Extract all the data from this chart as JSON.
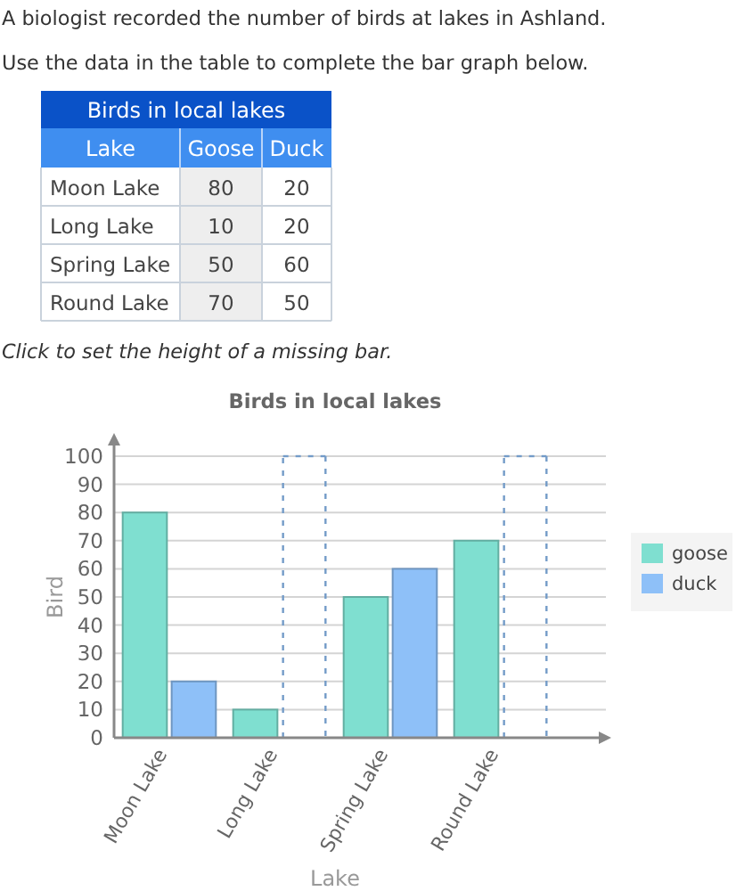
{
  "chart_data": [
    {
      "type": "other",
      "title": "Birds in local lakes",
      "xlabel": "Lake",
      "categories": [
        "Moon Lake",
        "Long Lake",
        "Spring Lake",
        "Round Lake"
      ],
      "series": [
        {
          "name": "Goose",
          "values": [
            80,
            10,
            50,
            70
          ]
        },
        {
          "name": "Duck",
          "values": [
            20,
            20,
            60,
            50
          ]
        }
      ],
      "data_labels": true,
      "annotations": [
        "A biologist recorded the number of birds at lakes in Ashland.",
        "Use the data in the table to complete the bar graph below."
      ]
    },
    {
      "type": "bar",
      "title": "Birds in local lakes",
      "xlabel": "Lake",
      "ylabel": "Bird",
      "categories": [
        "Moon Lake",
        "Long Lake",
        "Spring Lake",
        "Round Lake"
      ],
      "series": [
        {
          "name": "goose",
          "color": "#7fdfd0",
          "values": [
            80,
            10,
            50,
            70
          ]
        },
        {
          "name": "duck",
          "color": "#8ec0f8",
          "values": [
            20,
            null,
            60,
            null
          ]
        }
      ],
      "ylim": [
        0,
        100
      ],
      "yticks": [
        0,
        10,
        20,
        30,
        40,
        50,
        60,
        70,
        80,
        90,
        100
      ],
      "grid": "y",
      "legend": "right",
      "annotations": [
        "Click to set the height of a missing bar."
      ]
    }
  ]
}
